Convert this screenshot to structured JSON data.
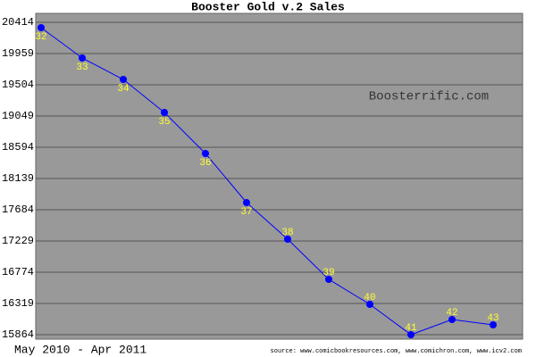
{
  "chart_data": {
    "type": "line",
    "title": "Booster Gold v.2 Sales",
    "categories": [
      "32",
      "33",
      "34",
      "35",
      "36",
      "37",
      "38",
      "39",
      "40",
      "41",
      "42",
      "43"
    ],
    "series": [
      {
        "name": "Sales",
        "color": "#0000ff",
        "values": [
          20336,
          19894,
          19582,
          19101,
          18503,
          17788,
          17255,
          16670,
          16306,
          15864,
          16085,
          16007
        ]
      }
    ],
    "ylim": [
      15799,
      20544
    ],
    "yticks": [
      15864,
      16319,
      16774,
      17229,
      17684,
      18139,
      18594,
      19049,
      19504,
      19959,
      20414
    ],
    "grid": true,
    "watermark": "Boosterrific.com",
    "x_label": "May 2010 - Apr 2011",
    "source": "source: www.comicbookresources.com, www.comichron.com, www.icv2.com"
  }
}
